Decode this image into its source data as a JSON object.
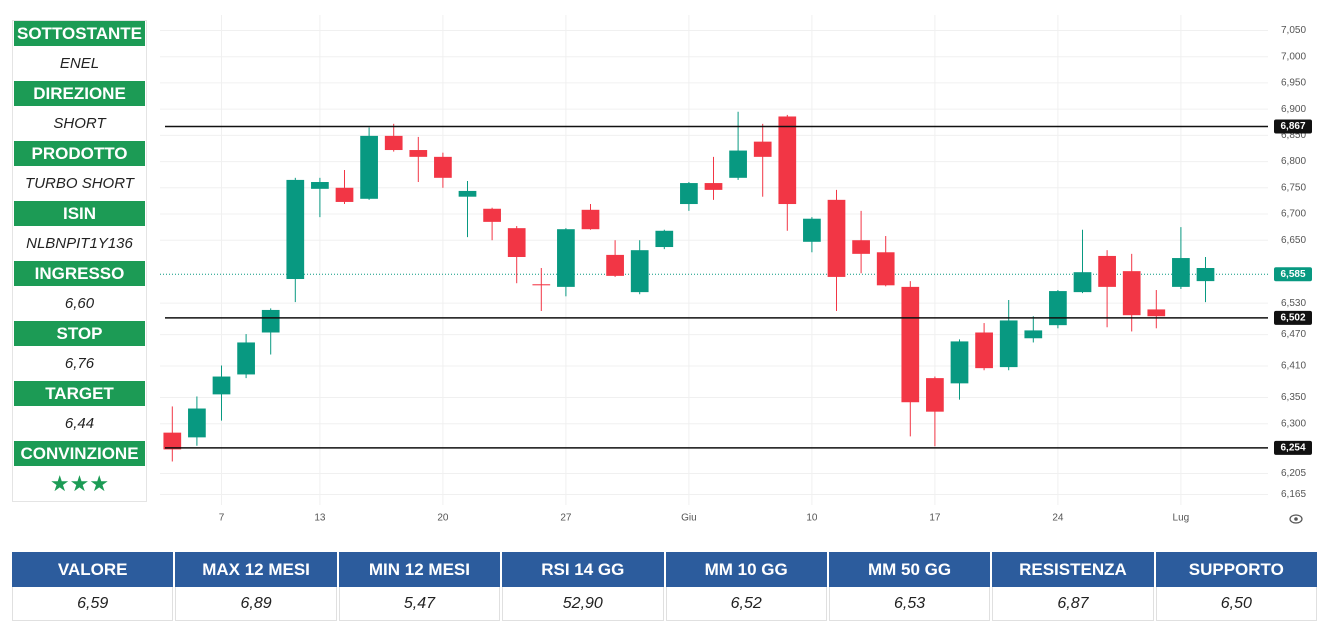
{
  "sidebar": [
    {
      "label": "SOTTOSTANTE",
      "value": "ENEL"
    },
    {
      "label": "DIREZIONE",
      "value": "SHORT"
    },
    {
      "label": "PRODOTTO",
      "value": "TURBO SHORT"
    },
    {
      "label": "ISIN",
      "value": "NLBNPIT1Y136"
    },
    {
      "label": "INGRESSO",
      "value": "6,60"
    },
    {
      "label": "STOP",
      "value": "6,76"
    },
    {
      "label": "TARGET",
      "value": "6,44"
    },
    {
      "label": "CONVINZIONE",
      "value": "★★★"
    }
  ],
  "chart_data": {
    "type": "candlestick",
    "categories": [
      null,
      null,
      "7",
      null,
      null,
      null,
      "13",
      null,
      null,
      null,
      null,
      "20",
      null,
      null,
      null,
      null,
      "27",
      null,
      null,
      null,
      null,
      "Giu",
      null,
      null,
      null,
      null,
      "10",
      null,
      null,
      null,
      null,
      "17",
      null,
      null,
      null,
      null,
      "24",
      null,
      null,
      null,
      null,
      "Lug",
      null
    ],
    "open": [
      6.283,
      6.274,
      6.356,
      6.394,
      6.474,
      6.576,
      6.748,
      6.75,
      6.729,
      6.849,
      6.822,
      6.809,
      6.733,
      6.71,
      6.673,
      6.566,
      6.561,
      6.708,
      6.622,
      6.551,
      6.637,
      6.719,
      6.759,
      6.769,
      6.838,
      6.886,
      6.647,
      6.727,
      6.65,
      6.627,
      6.561,
      6.387,
      6.377,
      6.474,
      6.408,
      6.463,
      6.488,
      6.551,
      6.62,
      6.591,
      6.518,
      6.561,
      6.572
    ],
    "high": [
      6.333,
      6.352,
      6.411,
      6.471,
      6.52,
      6.769,
      6.769,
      6.784,
      6.865,
      6.872,
      6.847,
      6.817,
      6.763,
      6.712,
      6.677,
      6.597,
      6.673,
      6.719,
      6.65,
      6.65,
      6.67,
      6.761,
      6.809,
      6.895,
      6.872,
      6.889,
      6.694,
      6.746,
      6.706,
      6.658,
      6.572,
      6.39,
      6.461,
      6.492,
      6.536,
      6.505,
      6.555,
      6.67,
      6.631,
      6.624,
      6.555,
      6.675,
      6.618
    ],
    "low": [
      6.228,
      6.258,
      6.306,
      6.387,
      6.432,
      6.532,
      6.694,
      6.719,
      6.727,
      6.819,
      6.761,
      6.75,
      6.656,
      6.65,
      6.568,
      6.515,
      6.543,
      6.67,
      6.58,
      6.547,
      6.633,
      6.706,
      6.727,
      6.765,
      6.733,
      6.668,
      6.627,
      6.515,
      6.587,
      6.562,
      6.276,
      6.257,
      6.346,
      6.402,
      6.402,
      6.455,
      6.482,
      6.549,
      6.484,
      6.476,
      6.482,
      6.557,
      6.532
    ],
    "close": [
      6.251,
      6.329,
      6.39,
      6.455,
      6.517,
      6.765,
      6.761,
      6.723,
      6.849,
      6.822,
      6.809,
      6.769,
      6.744,
      6.685,
      6.618,
      6.564,
      6.671,
      6.671,
      6.582,
      6.631,
      6.668,
      6.759,
      6.746,
      6.821,
      6.809,
      6.719,
      6.691,
      6.58,
      6.624,
      6.564,
      6.341,
      6.323,
      6.457,
      6.406,
      6.497,
      6.478,
      6.553,
      6.589,
      6.561,
      6.507,
      6.505,
      6.616,
      6.597
    ],
    "up_color": "#089981",
    "down_color": "#f23645",
    "ylim": [
      6.145,
      7.07
    ],
    "yticks": [
      {
        "value": 7.05,
        "label": "7,050"
      },
      {
        "value": 7.0,
        "label": "7,000"
      },
      {
        "value": 6.95,
        "label": "6,950"
      },
      {
        "value": 6.9,
        "label": "6,900"
      },
      {
        "value": 6.85,
        "label": "6,850"
      },
      {
        "value": 6.8,
        "label": "6,800"
      },
      {
        "value": 6.75,
        "label": "6,750"
      },
      {
        "value": 6.7,
        "label": "6,700"
      },
      {
        "value": 6.65,
        "label": "6,650"
      },
      {
        "value": 6.53,
        "label": "6,530"
      },
      {
        "value": 6.47,
        "label": "6,470"
      },
      {
        "value": 6.41,
        "label": "6,410"
      },
      {
        "value": 6.35,
        "label": "6,350"
      },
      {
        "value": 6.3,
        "label": "6,300"
      },
      {
        "value": 6.205,
        "label": "6,205"
      },
      {
        "value": 6.165,
        "label": "6,165"
      }
    ],
    "levels": [
      {
        "value": 6.867,
        "label": "6,867"
      },
      {
        "value": 6.502,
        "label": "6,502"
      },
      {
        "value": 6.254,
        "label": "6,254"
      }
    ],
    "last_price": {
      "value": 6.585,
      "label": "6,585",
      "color": "#089981"
    },
    "grid": true
  },
  "table": {
    "headers": [
      "VALORE",
      "MAX 12 MESI",
      "MIN 12 MESI",
      "RSI 14 GG",
      "MM 10 GG",
      "MM 50 GG",
      "RESISTENZA",
      "SUPPORTO"
    ],
    "values": [
      "6,59",
      "6,89",
      "5,47",
      "52,90",
      "6,52",
      "6,53",
      "6,87",
      "6,50"
    ]
  }
}
